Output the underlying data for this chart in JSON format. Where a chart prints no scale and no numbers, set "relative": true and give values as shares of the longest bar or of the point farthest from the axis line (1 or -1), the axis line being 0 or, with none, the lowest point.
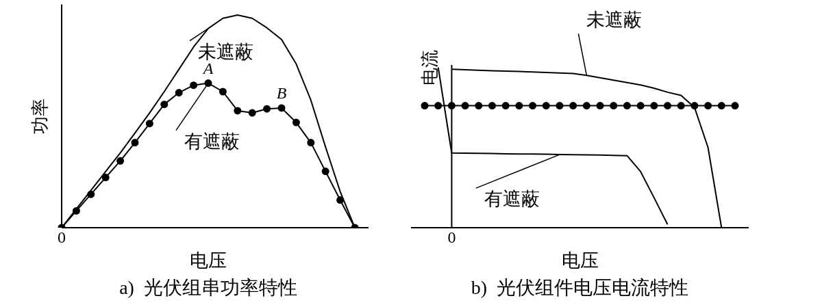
{
  "chart_data": [
    {
      "type": "line",
      "title": "a)  光伏组串功率特性",
      "xlabel": "电压",
      "ylabel": "功率",
      "relative": true,
      "categories": [
        null,
        null,
        null,
        null,
        null,
        null,
        null,
        null,
        null,
        null,
        null,
        null,
        null,
        null,
        null,
        null,
        null,
        null,
        null,
        null,
        null
      ],
      "series": [
        {
          "name": "未遮蔽",
          "color": "#000000",
          "values": [
            0,
            0.088,
            0.176,
            0.264,
            0.352,
            0.445,
            0.54,
            0.64,
            0.745,
            0.85,
            0.937,
            0.985,
            1,
            0.985,
            0.94,
            0.885,
            0.77,
            0.6,
            0.38,
            0.17,
            0
          ]
        },
        {
          "name": "有遮蔽",
          "color": "#000000",
          "marker": "circle",
          "values": [
            0,
            0.079,
            0.157,
            0.236,
            0.314,
            0.4,
            0.49,
            0.58,
            0.635,
            0.67,
            0.68,
            0.64,
            0.55,
            0.54,
            0.559,
            0.563,
            0.495,
            0.4,
            0.265,
            0.13,
            0
          ]
        }
      ],
      "annotations": [
        {
          "text": "A",
          "y": 0.68
        },
        {
          "text": "B",
          "y": 0.563
        },
        "0"
      ]
    },
    {
      "type": "line",
      "title": "b)  光伏组件电压电流特性",
      "xlabel": "电压",
      "ylabel": "电流",
      "relative": true,
      "categories": [
        null,
        null,
        null,
        null,
        null,
        null,
        null,
        null,
        null,
        null,
        null,
        null,
        null,
        null,
        null,
        null,
        null,
        null,
        null,
        null,
        null,
        null,
        null,
        null
      ],
      "series": [
        {
          "name": "未遮蔽",
          "color": "#000000",
          "values": [
            null,
            null,
            0.988,
            0.985,
            0.982,
            0.979,
            0.977,
            0.974,
            0.971,
            0.968,
            0.965,
            0.962,
            0.95,
            0.935,
            0.92,
            0.905,
            0.89,
            0.87,
            0.845,
            0.825,
            0.75,
            0.5,
            0,
            null
          ]
        },
        {
          "name": "有遮蔽",
          "color": "#000000",
          "values": [
            null,
            1,
            0.466,
            0.465,
            0.464,
            0.463,
            0.461,
            0.46,
            0.459,
            0.458,
            0.456,
            0.455,
            0.454,
            0.453,
            0.451,
            0.449,
            0.35,
            0.187,
            0.02,
            null,
            null,
            null,
            null,
            null
          ]
        },
        {
          "color": "#000000",
          "marker": "circle",
          "values": [
            0.761,
            0.761,
            0.761,
            0.761,
            0.761,
            0.761,
            0.761,
            0.761,
            0.761,
            0.761,
            0.761,
            0.761,
            0.761,
            0.761,
            0.761,
            0.761,
            0.761,
            0.761,
            0.761,
            0.761,
            0.761,
            0.761,
            0.761,
            0.761
          ]
        }
      ],
      "annotations": [
        "0"
      ]
    }
  ]
}
